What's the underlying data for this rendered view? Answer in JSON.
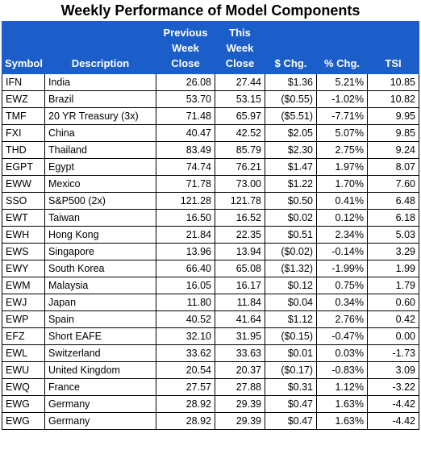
{
  "title": "Weekly Performance of Model Components",
  "headers": {
    "symbol": "Symbol",
    "description": "Description",
    "prev": [
      "Previous",
      "Week",
      "Close"
    ],
    "this": [
      "This",
      "Week",
      "Close"
    ],
    "chg": "$ Chg.",
    "pct": "% Chg.",
    "tsi": "TSI"
  },
  "colors": {
    "header_bg": "#1c5ec9",
    "positive": "#00a63f",
    "negative": "#d40000"
  },
  "rows": [
    {
      "symbol": "IFN",
      "description": "India",
      "prev": "26.08",
      "this": "27.44",
      "chg": "$1.36",
      "pct": "5.21%",
      "tsi": "10.85",
      "chg_sign": "pos",
      "pct_sign": "pos",
      "tsi_sign": "pos"
    },
    {
      "symbol": "EWZ",
      "description": "Brazil",
      "prev": "53.70",
      "this": "53.15",
      "chg": "($0.55)",
      "pct": "-1.02%",
      "tsi": "10.82",
      "chg_sign": "neg",
      "pct_sign": "neg",
      "tsi_sign": "pos"
    },
    {
      "symbol": "TMF",
      "description": "20 YR Treasury (3x)",
      "prev": "71.48",
      "this": "65.97",
      "chg": "($5.51)",
      "pct": "-7.71%",
      "tsi": "9.95",
      "chg_sign": "neg",
      "pct_sign": "neg",
      "tsi_sign": "pos"
    },
    {
      "symbol": "FXI",
      "description": "China",
      "prev": "40.47",
      "this": "42.52",
      "chg": "$2.05",
      "pct": "5.07%",
      "tsi": "9.85",
      "chg_sign": "pos",
      "pct_sign": "pos",
      "tsi_sign": "pos"
    },
    {
      "symbol": "THD",
      "description": "Thailand",
      "prev": "83.49",
      "this": "85.79",
      "chg": "$2.30",
      "pct": "2.75%",
      "tsi": "9.24",
      "chg_sign": "pos",
      "pct_sign": "pos",
      "tsi_sign": "pos"
    },
    {
      "symbol": "EGPT",
      "description": "Egypt",
      "prev": "74.74",
      "this": "76.21",
      "chg": "$1.47",
      "pct": "1.97%",
      "tsi": "8.07",
      "chg_sign": "pos",
      "pct_sign": "pos",
      "tsi_sign": "pos"
    },
    {
      "symbol": "EWW",
      "description": "Mexico",
      "prev": "71.78",
      "this": "73.00",
      "chg": "$1.22",
      "pct": "1.70%",
      "tsi": "7.60",
      "chg_sign": "pos",
      "pct_sign": "pos",
      "tsi_sign": "pos"
    },
    {
      "symbol": "SSO",
      "description": "S&P500 (2x)",
      "prev": "121.28",
      "this": "121.78",
      "chg": "$0.50",
      "pct": "0.41%",
      "tsi": "6.48",
      "chg_sign": "pos",
      "pct_sign": "pos",
      "tsi_sign": "pos"
    },
    {
      "symbol": "EWT",
      "description": "Taiwan",
      "prev": "16.50",
      "this": "16.52",
      "chg": "$0.02",
      "pct": "0.12%",
      "tsi": "6.18",
      "chg_sign": "pos",
      "pct_sign": "pos",
      "tsi_sign": "pos"
    },
    {
      "symbol": "EWH",
      "description": "Hong Kong",
      "prev": "21.84",
      "this": "22.35",
      "chg": "$0.51",
      "pct": "2.34%",
      "tsi": "5.03",
      "chg_sign": "pos",
      "pct_sign": "pos",
      "tsi_sign": "pos"
    },
    {
      "symbol": "EWS",
      "description": "Singapore",
      "prev": "13.96",
      "this": "13.94",
      "chg": "($0.02)",
      "pct": "-0.14%",
      "tsi": "3.29",
      "chg_sign": "neg",
      "pct_sign": "neg",
      "tsi_sign": "pos"
    },
    {
      "symbol": "EWY",
      "description": "South Korea",
      "prev": "66.40",
      "this": "65.08",
      "chg": "($1.32)",
      "pct": "-1.99%",
      "tsi": "1.99",
      "chg_sign": "neg",
      "pct_sign": "neg",
      "tsi_sign": "pos"
    },
    {
      "symbol": "EWM",
      "description": "Malaysia",
      "prev": "16.05",
      "this": "16.17",
      "chg": "$0.12",
      "pct": "0.75%",
      "tsi": "1.79",
      "chg_sign": "pos",
      "pct_sign": "pos",
      "tsi_sign": "pos"
    },
    {
      "symbol": "EWJ",
      "description": "Japan",
      "prev": "11.80",
      "this": "11.84",
      "chg": "$0.04",
      "pct": "0.34%",
      "tsi": "0.60",
      "chg_sign": "pos",
      "pct_sign": "pos",
      "tsi_sign": "pos"
    },
    {
      "symbol": "EWP",
      "description": "Spain",
      "prev": "40.52",
      "this": "41.64",
      "chg": "$1.12",
      "pct": "2.76%",
      "tsi": "0.42",
      "chg_sign": "pos",
      "pct_sign": "pos",
      "tsi_sign": "pos"
    },
    {
      "symbol": "EFZ",
      "description": "Short EAFE",
      "prev": "32.10",
      "this": "31.95",
      "chg": "($0.15)",
      "pct": "-0.47%",
      "tsi": "0.00",
      "chg_sign": "neg",
      "pct_sign": "neg",
      "tsi_sign": "pos"
    },
    {
      "symbol": "EWL",
      "description": "Switzerland",
      "prev": "33.62",
      "this": "33.63",
      "chg": "$0.01",
      "pct": "0.03%",
      "tsi": "-1.73",
      "chg_sign": "pos",
      "pct_sign": "pos",
      "tsi_sign": "neg"
    },
    {
      "symbol": "EWU",
      "description": "United Kingdom",
      "prev": "20.54",
      "this": "20.37",
      "chg": "($0.17)",
      "pct": "-0.83%",
      "tsi": "3.09",
      "chg_sign": "neg",
      "pct_sign": "neg",
      "tsi_sign": "pos"
    },
    {
      "symbol": "EWQ",
      "description": "France",
      "prev": "27.57",
      "this": "27.88",
      "chg": "$0.31",
      "pct": "1.12%",
      "tsi": "-3.22",
      "chg_sign": "pos",
      "pct_sign": "pos",
      "tsi_sign": "neg"
    },
    {
      "symbol": "EWG",
      "description": "Germany",
      "prev": "28.92",
      "this": "29.39",
      "chg": "$0.47",
      "pct": "1.63%",
      "tsi": "-4.42",
      "chg_sign": "pos",
      "pct_sign": "pos",
      "tsi_sign": "neg"
    },
    {
      "symbol": "EWG",
      "description": "Germany",
      "prev": "28.92",
      "this": "29.39",
      "chg": "$0.47",
      "pct": "1.63%",
      "tsi": "-4.42",
      "chg_sign": "pos",
      "pct_sign": "pos",
      "tsi_sign": "neg"
    }
  ]
}
